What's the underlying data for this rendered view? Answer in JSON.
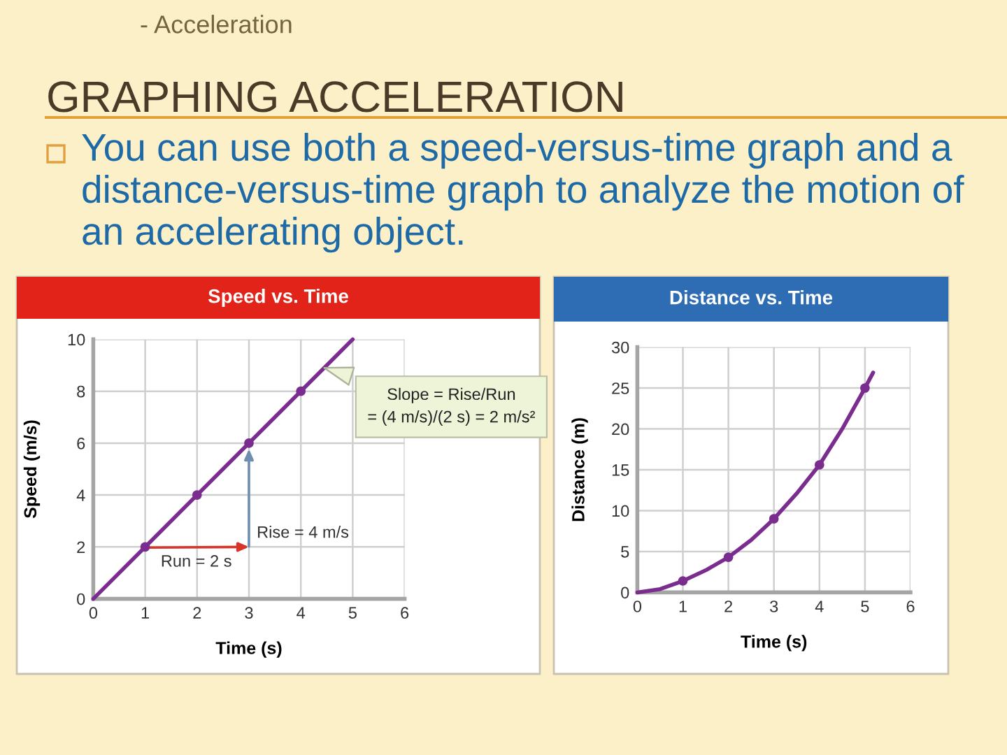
{
  "chart_data": [
    {
      "type": "other",
      "title": "GRAPHING ACCELERATION",
      "annotations": [
        "- Acceleration",
        "You can use both a speed-versus-time graph and a distance-versus-time graph to analyze the motion of an accelerating object."
      ]
    },
    {
      "type": "line",
      "title": "Speed vs. Time",
      "xlabel": "Time (s)",
      "ylabel": "Speed (m/s)",
      "series": [
        {
          "type": "line",
          "color": "#7b2c8f",
          "x": [
            0,
            5
          ],
          "values": [
            0,
            10
          ]
        },
        {
          "type": "scatter",
          "color": "#7b2c8f",
          "marker": "circle",
          "x": [
            1,
            2,
            3,
            4
          ],
          "values": [
            2,
            4,
            6,
            8
          ]
        }
      ],
      "xlim": [
        0,
        6
      ],
      "ylim": [
        0,
        10
      ],
      "xticks": [
        0,
        1,
        2,
        3,
        4,
        5,
        6
      ],
      "yticks": [
        0,
        2,
        4,
        6,
        8,
        10
      ],
      "grid": true,
      "annotations": [
        {
          "text": "Run = 2 s",
          "x": 1,
          "y": 2
        },
        {
          "text": "Rise = 4 m/s",
          "x": 3,
          "y": 6
        },
        "Slope = Rise/Run\n= (4 m/s)/(2 s) = 2 m/s²"
      ]
    },
    {
      "type": "line",
      "title": "Distance vs. Time",
      "xlabel": "Time (s)",
      "ylabel": "Distance (m)",
      "series": [
        {
          "type": "line",
          "color": "#7b2c8f",
          "x": [
            0,
            0.5,
            1,
            1.5,
            2,
            2.5,
            3,
            3.5,
            4,
            4.5,
            5,
            5.18
          ],
          "values": [
            0,
            0.4,
            1.4,
            2.7,
            4.3,
            6.4,
            9,
            12.1,
            15.6,
            20,
            25,
            26.9
          ]
        },
        {
          "type": "scatter",
          "color": "#7b2c8f",
          "marker": "circle",
          "x": [
            1,
            2,
            3,
            4,
            5
          ],
          "values": [
            1.4,
            4.3,
            9,
            15.6,
            25
          ]
        }
      ],
      "xlim": [
        0,
        6
      ],
      "ylim": [
        0,
        30
      ],
      "xticks": [
        0,
        1,
        2,
        3,
        4,
        5,
        6
      ],
      "yticks": [
        0,
        5,
        10,
        15,
        20,
        25,
        30
      ],
      "grid": true
    }
  ]
}
